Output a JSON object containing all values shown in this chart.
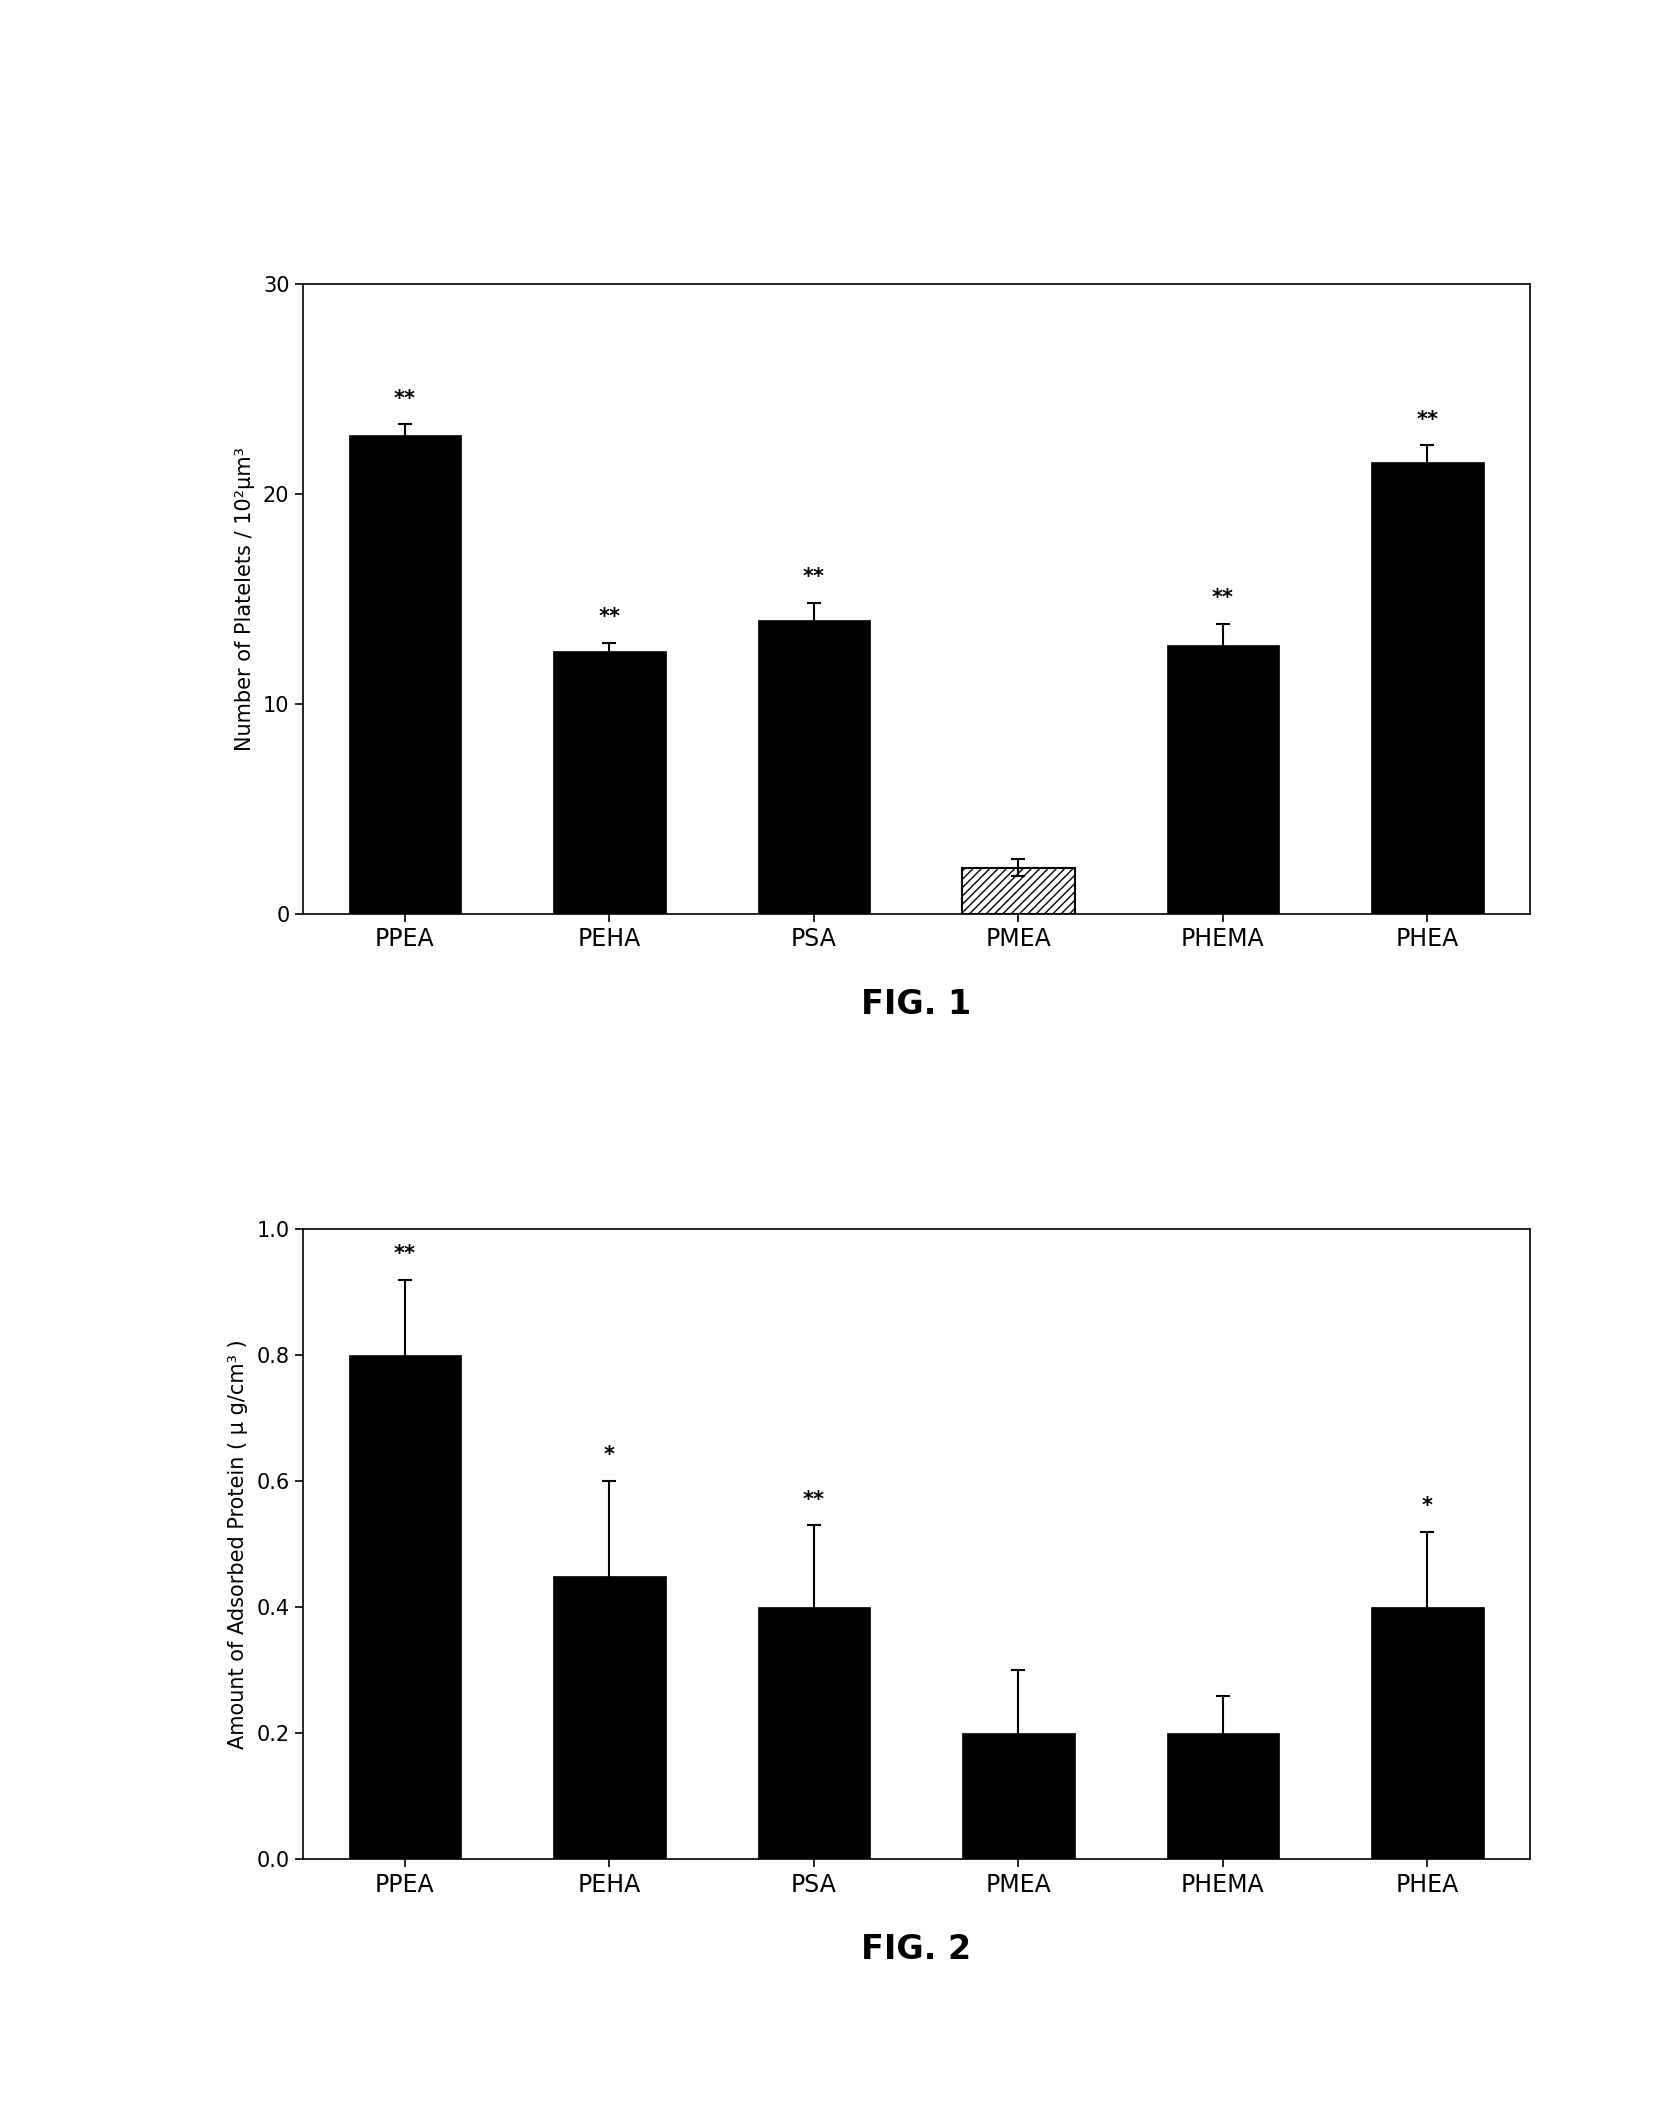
{
  "fig1": {
    "categories": [
      "PPEA",
      "PEHA",
      "PSA",
      "PMEA",
      "PHEMA",
      "PHEA"
    ],
    "values": [
      22.8,
      12.5,
      14.0,
      2.2,
      12.8,
      21.5
    ],
    "errors": [
      0.5,
      0.4,
      0.8,
      0.4,
      1.0,
      0.8
    ],
    "hatched": [
      false,
      false,
      false,
      true,
      false,
      false
    ],
    "stars": [
      "**",
      "**",
      "**",
      "",
      "**",
      "**"
    ],
    "ylabel": "Number of Platelets / 10²μm³",
    "ylim": [
      0,
      30
    ],
    "yticks": [
      0,
      10,
      20,
      30
    ],
    "title": "FIG. 1",
    "bar_color": "#000000",
    "hatch_pattern": "////"
  },
  "fig2": {
    "categories": [
      "PPEA",
      "PEHA",
      "PSA",
      "PMEA",
      "PHEMA",
      "PHEA"
    ],
    "values": [
      0.8,
      0.45,
      0.4,
      0.2,
      0.2,
      0.4
    ],
    "errors": [
      0.12,
      0.15,
      0.13,
      0.1,
      0.06,
      0.12
    ],
    "stars": [
      "**",
      "*",
      "**",
      "",
      "",
      "*"
    ],
    "ylabel": "Amount of Adsorbed Protein ( μ g/cm³ )",
    "ylim": [
      0,
      1.0
    ],
    "yticks": [
      0.0,
      0.2,
      0.4,
      0.6,
      0.8,
      1.0
    ],
    "title": "FIG. 2",
    "bar_color": "#000000"
  },
  "background_color": "#ffffff",
  "bar_width": 0.55,
  "title_fontsize": 24,
  "label_fontsize": 15,
  "tick_fontsize": 15,
  "star_fontsize": 15,
  "xtick_fontsize": 17
}
